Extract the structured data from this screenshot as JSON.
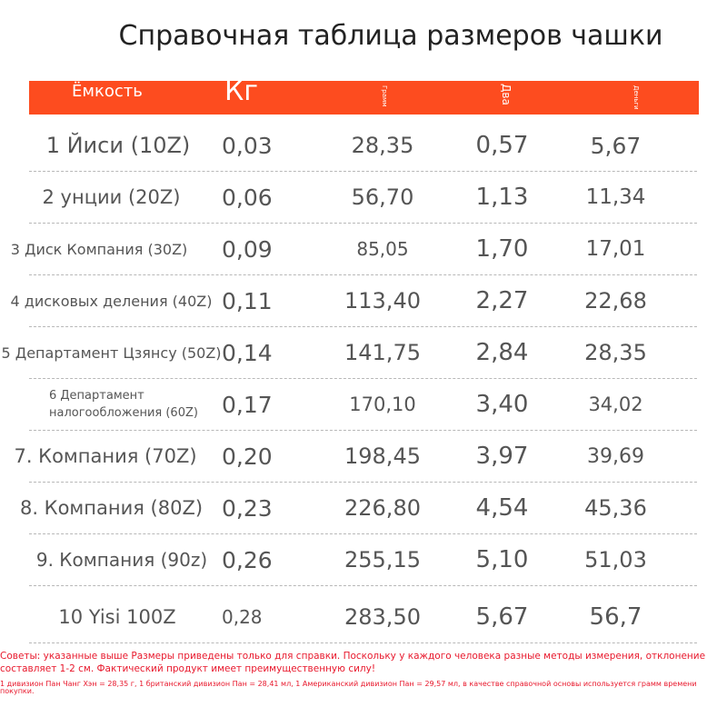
{
  "title": "Справочная таблица размеров чашки",
  "header": {
    "capacity": "Ёмкость",
    "kg": "Кг",
    "grams": "Грамм",
    "dva": "Два",
    "den": "Деньги"
  },
  "rows": [
    {
      "name": "1 Йиси (10Z)",
      "kg": "0,03",
      "g": "28,35",
      "oz": "0,57",
      "d": "5,67"
    },
    {
      "name": "2 унции (20Z)",
      "kg": "0,06",
      "g": "56,70",
      "oz": "1,13",
      "d": "11,34"
    },
    {
      "name": "3 Диск Компания (30Z)",
      "kg": "0,09",
      "g": "85,05",
      "oz": "1,70",
      "d": "17,01"
    },
    {
      "name": "4 дисковых деления (40Z)",
      "kg": "0,11",
      "g": "113,40",
      "oz": "2,27",
      "d": "22,68"
    },
    {
      "name": "5 Департамент Цзянсу (50Z)",
      "kg": "0,14",
      "g": "141,75",
      "oz": "2,84",
      "d": "28,35"
    },
    {
      "name": "6 Департамент налогообложения (60Z)",
      "kg": "0,17",
      "g": "170,10",
      "oz": "3,40",
      "d": "34,02"
    },
    {
      "name": "7. Компания (70Z)",
      "kg": "0,20",
      "g": "198,45",
      "oz": "3,97",
      "d": "39,69"
    },
    {
      "name": "8. Компания (80Z)",
      "kg": "0,23",
      "g": "226,80",
      "oz": "4,54",
      "d": "45,36"
    },
    {
      "name": "9. Компания (90z)",
      "kg": "0,26",
      "g": "255,15",
      "oz": "5,10",
      "d": "51,03"
    },
    {
      "name": "10 Yisi 100Z",
      "kg": "0,28",
      "g": "283,50",
      "oz": "5,67",
      "d": "56,7"
    }
  ],
  "notes": {
    "tip": "Советы: указанные выше Размеры приведены только для справки. Поскольку у каждого человека разные методы измерения, отклонение составляет 1-2 см. Фактический продукт имеет преимущественную силу!",
    "conversion": "1 дивизион Пан Чанг Хэн = 28,35 г, 1 британский дивизион Пан = 28,41 мл, 1 Американский дивизион Пан = 29,57 мл, в качестве справочной основы используется грамм времени покупки."
  }
}
